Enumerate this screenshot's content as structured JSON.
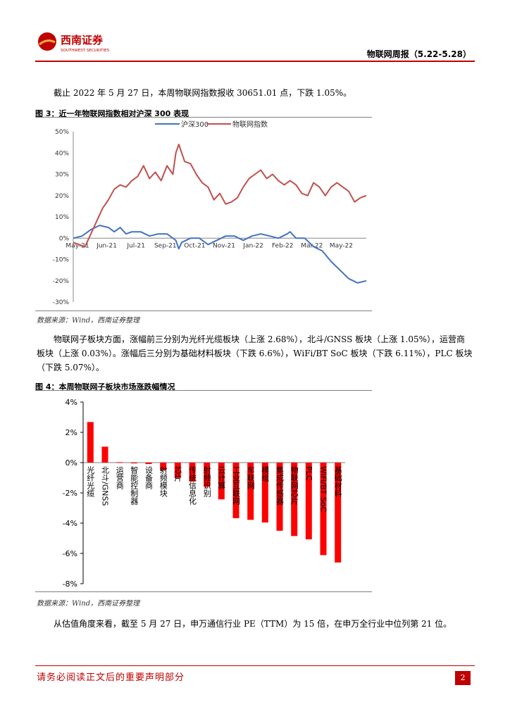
{
  "header": {
    "company_name": "西南证券",
    "company_name_en": "SOUTHWEST SECURITIES",
    "report_title": "物联网周报（5.22-5.28）"
  },
  "paragraphs": {
    "p1": "截止 2022 年 5 月 27 日，本周物联网指数报收 30651.01 点，下跌 1.05%。",
    "p2": "物联网子板块方面，涨幅前三分别为光纤光缆板块（上涨 2.68%），北斗/GNSS 板块（上涨 1.05%），运营商板块（上涨 0.03%）。涨幅后三分别为基础材料板块（下跌 6.6%），WiFi/BT SoC 板块（下跌 6.11%），PLC 板块（下跌 5.07%）。",
    "p3": "从估值角度来看，截至 5 月 27 日，申万通信行业 PE（TTM）为 15 倍，在申万全行业中位列第 21 位。"
  },
  "figures": {
    "fig3_caption": "图 3：近一年物联网指数相对沪深 300 表现",
    "fig4_caption": "图 4：本周物联网子板块市场涨跌幅情况",
    "source3": "数据来源：Wind，西南证券整理",
    "source4": "数据来源：Wind，西南证券整理"
  },
  "footer": {
    "disclaimer": "请务必阅读正文后的重要声明部分",
    "page": "2"
  },
  "chart_data": [
    {
      "type": "line",
      "title": "近一年物联网指数相对沪深 300 表现",
      "legend": [
        "沪深300",
        "物联网指数"
      ],
      "x_ticks": [
        "May-21",
        "Jun-21",
        "Jul-21",
        "Sep-21",
        "Oct-21",
        "Nov-21",
        "Jan-22",
        "Feb-22",
        "Mar-22",
        "May-22"
      ],
      "y_ticks": [
        "50%",
        "40%",
        "30%",
        "20%",
        "10%",
        "0%",
        "-10%",
        "-20%",
        "-30%"
      ],
      "ylim": [
        -30,
        50
      ],
      "colors": {
        "hs300": "#4472c4",
        "iot": "#c0504d"
      },
      "series": [
        {
          "name": "沪深300",
          "x": [
            0,
            3,
            6,
            9,
            12,
            14,
            16,
            18,
            20,
            23,
            26,
            29,
            32,
            35,
            36,
            37,
            40,
            43,
            46,
            49,
            52,
            55,
            58,
            61,
            64,
            67,
            70,
            73,
            74,
            76,
            79,
            82,
            85,
            88,
            91,
            94,
            97,
            100
          ],
          "values": [
            0,
            1,
            4,
            6,
            5,
            3,
            5,
            2,
            3,
            3,
            1,
            2,
            2,
            -1,
            -5,
            -2,
            0,
            0,
            -3,
            -1,
            1,
            1,
            -1,
            1,
            2,
            1,
            0,
            2,
            3,
            0,
            0,
            -4,
            -6,
            -11,
            -15,
            -19,
            -21,
            -20
          ]
        },
        {
          "name": "物联网指数",
          "x": [
            0,
            2,
            4,
            6,
            8,
            10,
            12,
            14,
            16,
            18,
            20,
            22,
            24,
            26,
            28,
            30,
            32,
            34,
            35,
            36,
            38,
            40,
            42,
            44,
            46,
            48,
            50,
            52,
            54,
            56,
            58,
            60,
            62,
            64,
            66,
            68,
            70,
            72,
            74,
            76,
            78,
            80,
            82,
            84,
            86,
            88,
            90,
            92,
            94,
            96,
            98,
            100
          ],
          "values": [
            -2,
            -3,
            -4,
            2,
            8,
            14,
            18,
            23,
            25,
            24,
            27,
            29,
            34,
            28,
            31,
            27,
            34,
            30,
            40,
            44,
            36,
            35,
            30,
            26,
            24,
            18,
            21,
            16,
            17,
            19,
            24,
            28,
            30,
            32,
            28,
            30,
            27,
            25,
            27,
            25,
            21,
            20,
            26,
            24,
            20,
            24,
            26,
            24,
            22,
            17,
            19,
            20
          ]
        }
      ]
    },
    {
      "type": "bar",
      "title": "本周物联网子板块市场涨跌幅情况",
      "y_ticks": [
        "4%",
        "2%",
        "0%",
        "-2%",
        "-4%",
        "-6%",
        "-8%"
      ],
      "ylim": [
        -8,
        4
      ],
      "color": "#ff0000",
      "categories": [
        "光纤光缆",
        "北斗/GNSS",
        "运营商",
        "智能控制器",
        "设备商",
        "射频模块",
        "芯片",
        "传统信息化",
        "射频识别",
        "云计算",
        "工业互联网",
        "车联网",
        "模组",
        "集成传感器",
        "物联网芯片",
        "PLC",
        "WiFi/BT SoC",
        "基础材料"
      ],
      "values": [
        2.68,
        1.05,
        0.03,
        -0.05,
        -0.1,
        -0.5,
        -1.02,
        -1.25,
        -1.6,
        -2.43,
        -3.67,
        -3.78,
        -3.96,
        -4.5,
        -4.85,
        -5.07,
        -6.11,
        -6.6
      ]
    }
  ]
}
